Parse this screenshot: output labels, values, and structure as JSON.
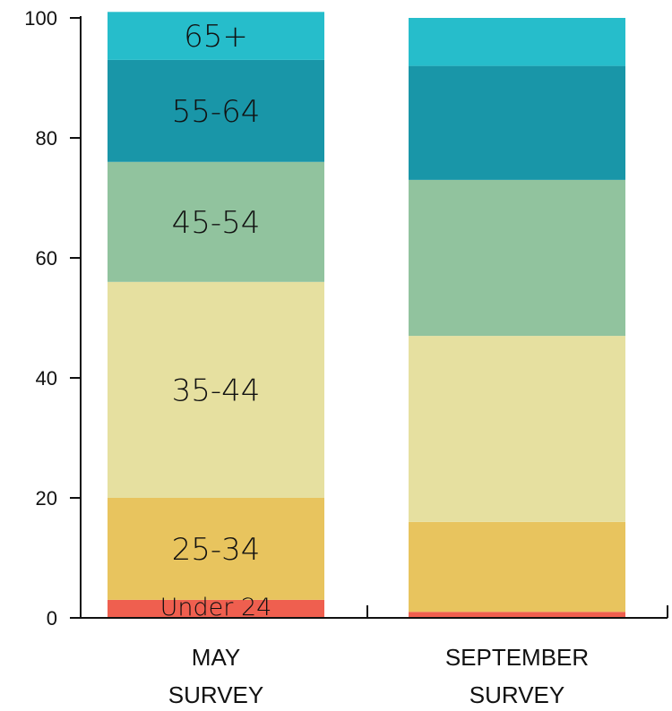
{
  "chart_data": {
    "type": "bar",
    "stacked": true,
    "categories": [
      [
        "MAY",
        "SURVEY"
      ],
      [
        "SEPTEMBER",
        "SURVEY"
      ]
    ],
    "ylim": [
      0,
      100
    ],
    "yticks": [
      0,
      20,
      40,
      60,
      80,
      100
    ],
    "series": [
      {
        "name": "Under 24",
        "color": "#ef5f4f",
        "values": [
          3,
          1
        ]
      },
      {
        "name": "25-34",
        "color": "#e8c45e",
        "values": [
          17,
          15
        ]
      },
      {
        "name": "35-44",
        "color": "#e6e0a0",
        "values": [
          36,
          31
        ]
      },
      {
        "name": "45-54",
        "color": "#91c39e",
        "values": [
          20,
          26
        ]
      },
      {
        "name": "55-64",
        "color": "#1996a8",
        "values": [
          17,
          19
        ]
      },
      {
        "name": "65+",
        "color": "#26bdcb",
        "values": [
          8,
          8
        ]
      }
    ],
    "segment_labels_on_category": 0,
    "grid": false
  }
}
